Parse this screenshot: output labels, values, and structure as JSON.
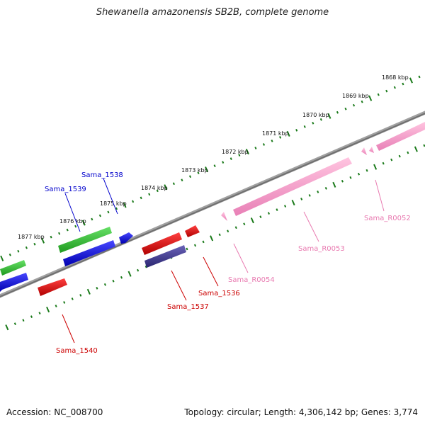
{
  "title": "Shewanella amazonensis SB2B, complete genome",
  "footer": {
    "accession": "Accession: NC_008700",
    "summary": "Topology: circular; Length: 4,306,142 bp; Genes: 3,774"
  },
  "scale": {
    "ticks": [
      "1868 kbp",
      "1869 kbp",
      "1870 kbp",
      "1871 kbp",
      "1872 kbp",
      "1873 kbp",
      "1874 kbp",
      "1875 kbp",
      "1876 kbp",
      "1877 kbp"
    ],
    "color": "#1a7a1a"
  },
  "genes": [
    {
      "name": "Sama_1538",
      "color": "#0000cc"
    },
    {
      "name": "Sama_1539",
      "color": "#0000cc"
    },
    {
      "name": "Sama_1540",
      "color": "#cc0000"
    },
    {
      "name": "Sama_1537",
      "color": "#cc0000"
    },
    {
      "name": "Sama_1536",
      "color": "#cc0000"
    },
    {
      "name": "Sama_R0054",
      "color": "#e87ab0"
    },
    {
      "name": "Sama_R0053",
      "color": "#e87ab0"
    },
    {
      "name": "Sama_R0052",
      "color": "#e87ab0"
    }
  ],
  "colors": {
    "backbone": "#808080",
    "green": "#33bb33",
    "blue": "#1010dd",
    "red": "#e00000",
    "navy": "#3b3488",
    "pink": "#f59bc8"
  }
}
